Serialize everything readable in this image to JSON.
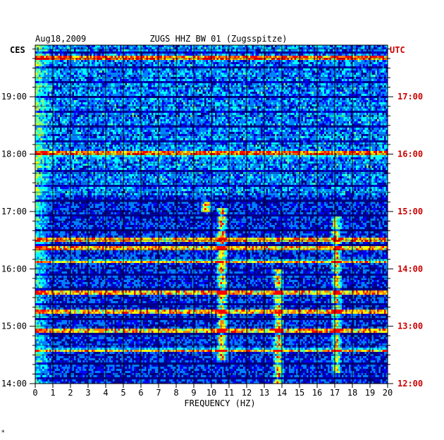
{
  "header": {
    "date": "Aug18,2009",
    "station": "ZUGS HHZ BW 01 (Zugsspitze)"
  },
  "chart_data": {
    "type": "heatmap",
    "title": "ZUGS HHZ BW 01 (Zugsspitze)",
    "date": "Aug18,2009",
    "xlabel": "FREQUENCY (HZ)",
    "xlim": [
      0,
      20
    ],
    "x_ticks": [
      "0",
      "1",
      "2",
      "3",
      "4",
      "5",
      "6",
      "7",
      "8",
      "9",
      "10",
      "11",
      "12",
      "13",
      "14",
      "15",
      "16",
      "17",
      "18",
      "19",
      "20"
    ],
    "left_axis_label": "CES",
    "right_axis_label": "UTC",
    "left_ticks": [
      "14:00",
      "15:00",
      "16:00",
      "17:00",
      "18:00",
      "19:00"
    ],
    "right_ticks": [
      "12:00",
      "13:00",
      "14:00",
      "15:00",
      "16:00",
      "17:00"
    ],
    "time_range_local_hours": [
      14.0,
      19.9
    ],
    "colormap": [
      "#00008b",
      "#0000ff",
      "#0080ff",
      "#00ffff",
      "#80ff80",
      "#ffff00",
      "#ff8000",
      "#ff0000"
    ],
    "background_color": "#00008b",
    "label_color_left": "#000000",
    "label_color_right": "#cc0000",
    "strong_features": [
      {
        "freq_hz": 10.6,
        "local_hour_range": [
          14.4,
          17.05
        ],
        "intensity": 0.85
      },
      {
        "freq_hz": 13.8,
        "local_hour_range": [
          14.0,
          16.0
        ],
        "intensity": 0.8
      },
      {
        "freq_hz": 17.1,
        "local_hour_range": [
          14.2,
          16.9
        ],
        "intensity": 0.7
      },
      {
        "freq_hz": 9.7,
        "local_hour_range": [
          17.0,
          17.2
        ],
        "intensity": 0.95
      }
    ],
    "strong_rows_local_hours": [
      19.68,
      18.0,
      16.35,
      15.6,
      14.93,
      16.15,
      16.5,
      15.25,
      14.6
    ],
    "grid": true
  },
  "footer": {
    "mark": "*"
  }
}
